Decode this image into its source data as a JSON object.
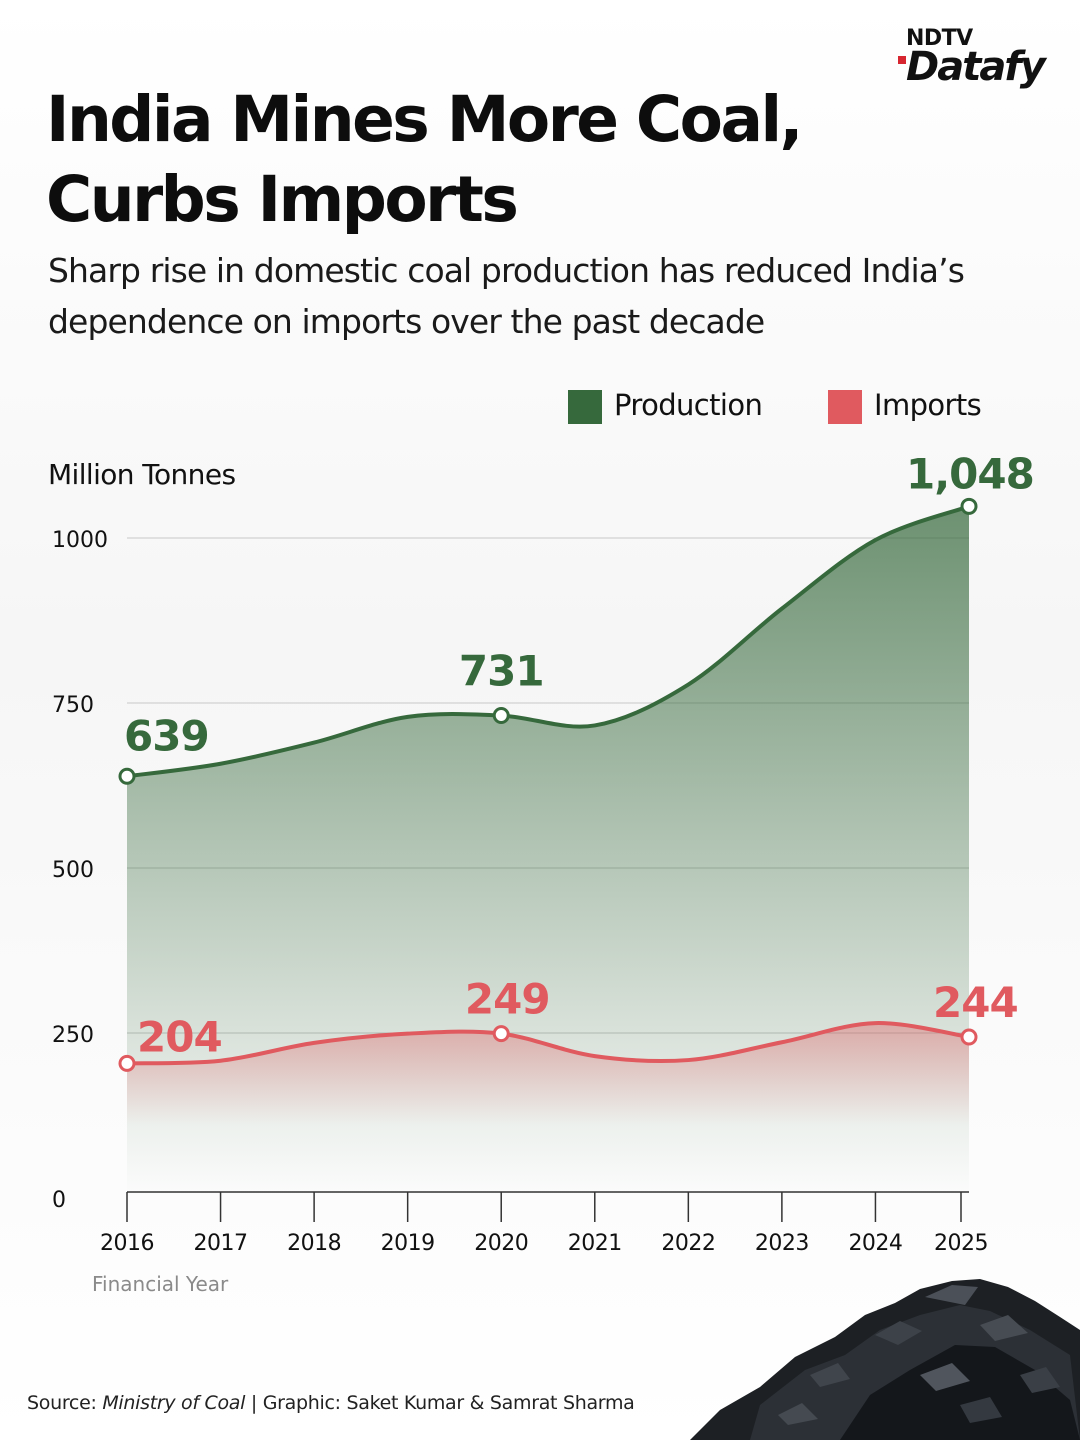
{
  "brand": {
    "top": "NDTV",
    "main": "Datafy"
  },
  "title": "India Mines More Coal, Curbs Imports",
  "subtitle": "Sharp rise in domestic coal production has reduced India’s dependence on imports over the past decade",
  "source": {
    "prefix": "Source:",
    "name": "Ministry of Coal",
    "credit": "| Graphic: Saket Kumar & Samrat Sharma"
  },
  "colors": {
    "production": "#36693c",
    "imports": "#e05a5f",
    "grid": "#c8c8c8",
    "axis": "#333333"
  },
  "chart_data": {
    "type": "area",
    "ylabel": "Million Tonnes",
    "xlabel": "Financial Year",
    "ylim": [
      0,
      1000
    ],
    "yticks": [
      0,
      250,
      500,
      750,
      1000
    ],
    "grid": true,
    "legend_position": "top-right",
    "categories": [
      "2016",
      "2017",
      "2018",
      "2019",
      "2020",
      "2021",
      "2022",
      "2023",
      "2024",
      "2025"
    ],
    "series": [
      {
        "name": "Production",
        "values": [
          639,
          658,
          690,
          729,
          731,
          716,
          778,
          893,
          997,
          1048
        ],
        "labels": [
          {
            "index": 0,
            "text": "639"
          },
          {
            "index": 4,
            "text": "731"
          },
          {
            "index": 9,
            "text": "1,048"
          }
        ]
      },
      {
        "name": "Imports",
        "values": [
          204,
          208,
          235,
          249,
          249,
          215,
          209,
          236,
          265,
          244
        ],
        "labels": [
          {
            "index": 0,
            "text": "204"
          },
          {
            "index": 4,
            "text": "249"
          },
          {
            "index": 9,
            "text": "244"
          }
        ]
      }
    ]
  }
}
